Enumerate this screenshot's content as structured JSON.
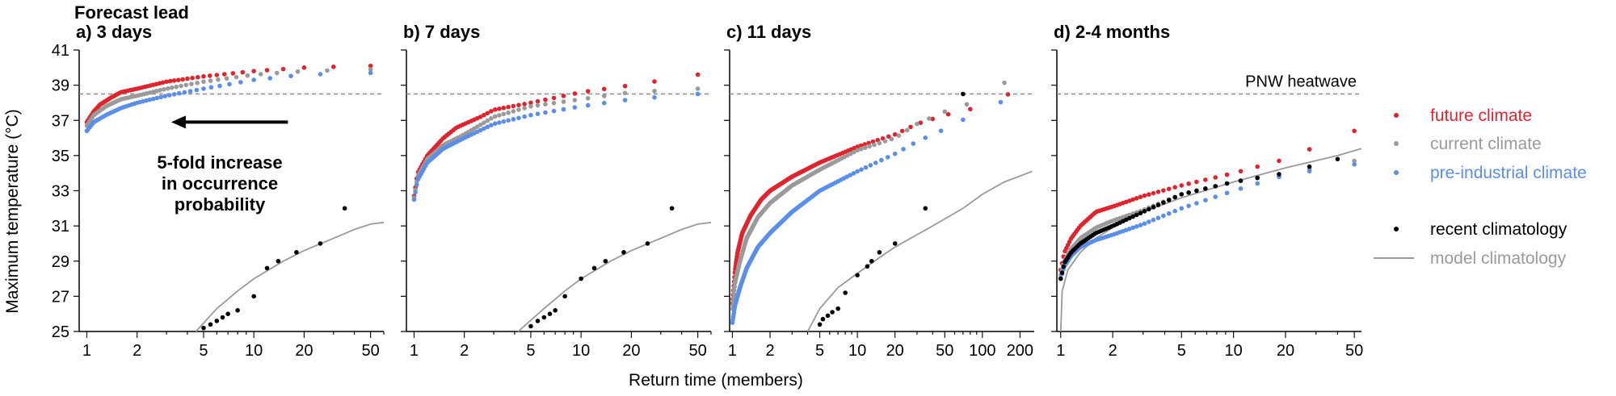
{
  "figure": {
    "suptitle": "Forecast lead",
    "ylabel": "Maximum temperature (°C)",
    "xlabel": "Return time (members)"
  },
  "colors": {
    "future": "#e0242e",
    "current": "#9a9a9a",
    "preindustrial": "#5a8ee8",
    "recent": "#000000",
    "model": "#9a9a9a",
    "heatwave_line": "#8a8a8a"
  },
  "legend": {
    "future": "future climate",
    "current": "current climate",
    "preindustrial": "pre-industrial climate",
    "recent": "recent climatology",
    "model": "model climatology"
  },
  "reference_line": {
    "label": "PNW heatwave",
    "value": 38.5
  },
  "annotation": {
    "lines": [
      "5-fold increase",
      "in occurrence",
      "probability"
    ],
    "arrow_from_x": 16,
    "arrow_to_x": 3.2,
    "arrow_y": 36.9
  },
  "chart_data": [
    {
      "type": "scatter",
      "panel": "a",
      "title": "a) 3 days",
      "xscale": "log",
      "xlim": [
        0.9,
        60
      ],
      "ylim": [
        25,
        41
      ],
      "xticks": [
        1,
        2,
        5,
        10,
        20,
        50
      ],
      "yticks": [
        25,
        27,
        29,
        31,
        33,
        35,
        37,
        39,
        41
      ],
      "series": {
        "future": {
          "n": 60,
          "xmax": 50,
          "pts": [
            [
              1,
              36.9
            ],
            [
              1.1,
              37.5
            ],
            [
              1.2,
              37.9
            ],
            [
              1.4,
              38.3
            ],
            [
              1.6,
              38.6
            ],
            [
              2,
              38.8
            ],
            [
              3,
              39.2
            ],
            [
              5,
              39.5
            ],
            [
              10,
              39.8
            ],
            [
              20,
              40.0
            ],
            [
              50,
              40.1
            ]
          ]
        },
        "current": {
          "n": 55,
          "xmax": 50,
          "pts": [
            [
              1,
              36.7
            ],
            [
              1.1,
              37.3
            ],
            [
              1.3,
              37.8
            ],
            [
              1.6,
              38.2
            ],
            [
              2,
              38.4
            ],
            [
              3,
              38.8
            ],
            [
              5,
              39.2
            ],
            [
              10,
              39.6
            ],
            [
              20,
              39.8
            ],
            [
              50,
              39.9
            ]
          ]
        },
        "preindustrial": {
          "n": 50,
          "xmax": 50,
          "pts": [
            [
              1,
              36.4
            ],
            [
              1.1,
              36.9
            ],
            [
              1.3,
              37.3
            ],
            [
              1.6,
              37.7
            ],
            [
              2,
              38.0
            ],
            [
              3,
              38.4
            ],
            [
              5,
              38.8
            ],
            [
              10,
              39.3
            ],
            [
              20,
              39.6
            ],
            [
              50,
              39.7
            ]
          ]
        },
        "recent": [
          [
            35,
            32.0
          ],
          [
            25,
            30.0
          ],
          [
            18,
            29.5
          ],
          [
            14,
            29.0
          ],
          [
            12,
            28.6
          ],
          [
            10,
            27.0
          ],
          [
            8,
            26.2
          ],
          [
            7,
            26.0
          ],
          [
            6.5,
            25.8
          ],
          [
            6,
            25.6
          ],
          [
            5.5,
            25.4
          ],
          [
            5,
            25.2
          ]
        ],
        "model": [
          [
            4.5,
            25
          ],
          [
            6,
            26.3
          ],
          [
            8,
            27.3
          ],
          [
            10,
            28.0
          ],
          [
            15,
            29.0
          ],
          [
            20,
            29.6
          ],
          [
            30,
            30.3
          ],
          [
            40,
            30.8
          ],
          [
            50,
            31.1
          ],
          [
            60,
            31.2
          ]
        ]
      }
    },
    {
      "type": "scatter",
      "panel": "b",
      "title": "b) 7 days",
      "xscale": "log",
      "xlim": [
        0.9,
        60
      ],
      "ylim": [
        25,
        41
      ],
      "xticks": [
        1,
        2,
        5,
        10,
        20,
        50
      ],
      "yticks": [
        25,
        27,
        29,
        31,
        33,
        35,
        37,
        39,
        41
      ],
      "series": {
        "future": {
          "n": 55,
          "xmax": 50,
          "pts": [
            [
              1,
              32.7
            ],
            [
              1.05,
              34.0
            ],
            [
              1.2,
              35.0
            ],
            [
              1.5,
              36.0
            ],
            [
              1.8,
              36.6
            ],
            [
              2.5,
              37.2
            ],
            [
              3,
              37.6
            ],
            [
              5,
              38.0
            ],
            [
              10,
              38.6
            ],
            [
              20,
              39.0
            ],
            [
              50,
              39.6
            ]
          ]
        },
        "current": {
          "n": 55,
          "xmax": 50,
          "pts": [
            [
              1,
              32.6
            ],
            [
              1.05,
              33.8
            ],
            [
              1.2,
              34.8
            ],
            [
              1.5,
              35.6
            ],
            [
              2,
              36.2
            ],
            [
              3,
              37.2
            ],
            [
              5,
              37.8
            ],
            [
              10,
              38.2
            ],
            [
              20,
              38.6
            ],
            [
              50,
              38.8
            ]
          ]
        },
        "preindustrial": {
          "n": 55,
          "xmax": 50,
          "pts": [
            [
              1,
              32.5
            ],
            [
              1.05,
              33.6
            ],
            [
              1.2,
              34.6
            ],
            [
              1.5,
              35.4
            ],
            [
              2,
              36.0
            ],
            [
              3,
              36.8
            ],
            [
              5,
              37.3
            ],
            [
              10,
              37.8
            ],
            [
              20,
              38.2
            ],
            [
              50,
              38.5
            ]
          ]
        },
        "recent": [
          [
            35,
            32.0
          ],
          [
            25,
            30.0
          ],
          [
            18,
            29.5
          ],
          [
            14,
            29.0
          ],
          [
            12,
            28.6
          ],
          [
            10,
            28.0
          ],
          [
            8,
            27.0
          ],
          [
            7,
            26.2
          ],
          [
            6.5,
            26.0
          ],
          [
            6,
            25.8
          ],
          [
            5.5,
            25.6
          ],
          [
            5,
            25.3
          ]
        ],
        "model": [
          [
            4.2,
            25
          ],
          [
            6,
            26.3
          ],
          [
            8,
            27.3
          ],
          [
            10,
            28.0
          ],
          [
            15,
            29.0
          ],
          [
            20,
            29.6
          ],
          [
            30,
            30.3
          ],
          [
            40,
            30.8
          ],
          [
            50,
            31.1
          ],
          [
            60,
            31.2
          ]
        ]
      }
    },
    {
      "type": "scatter",
      "panel": "c",
      "title": "c) 11 days",
      "xscale": "log",
      "xlim": [
        0.95,
        260
      ],
      "ylim": [
        25,
        41
      ],
      "xticks": [
        1,
        2,
        5,
        10,
        20,
        50,
        100,
        200
      ],
      "yticks": [
        25,
        27,
        29,
        31,
        33,
        35,
        37,
        39,
        41
      ],
      "series": {
        "future": {
          "n": 160,
          "xmax": 200,
          "pts": [
            [
              1,
              26.6
            ],
            [
              1.05,
              28.5
            ],
            [
              1.1,
              29.5
            ],
            [
              1.2,
              30.6
            ],
            [
              1.4,
              31.6
            ],
            [
              1.7,
              32.5
            ],
            [
              2,
              33.0
            ],
            [
              3,
              33.8
            ],
            [
              5,
              34.6
            ],
            [
              10,
              35.5
            ],
            [
              20,
              36.2
            ],
            [
              30,
              36.8
            ],
            [
              50,
              37.3
            ],
            [
              100,
              37.8
            ],
            [
              200,
              38.8
            ]
          ]
        },
        "current": {
          "n": 150,
          "xmax": 200,
          "pts": [
            [
              1,
              26.3
            ],
            [
              1.05,
              27.8
            ],
            [
              1.15,
              29.0
            ],
            [
              1.3,
              30.3
            ],
            [
              1.6,
              31.5
            ],
            [
              2,
              32.3
            ],
            [
              3,
              33.3
            ],
            [
              5,
              34.2
            ],
            [
              10,
              35.3
            ],
            [
              20,
              36.0
            ],
            [
              30,
              36.8
            ],
            [
              50,
              37.5
            ],
            [
              100,
              38.2
            ],
            [
              200,
              39.8
            ]
          ]
        },
        "preindustrial": {
          "n": 140,
          "xmax": 200,
          "pts": [
            [
              1,
              25.5
            ],
            [
              1.05,
              26.5
            ],
            [
              1.15,
              27.5
            ],
            [
              1.3,
              28.6
            ],
            [
              1.6,
              29.8
            ],
            [
              2,
              30.6
            ],
            [
              3,
              31.8
            ],
            [
              5,
              33.0
            ],
            [
              10,
              34.1
            ],
            [
              20,
              35.1
            ],
            [
              30,
              35.8
            ],
            [
              50,
              36.5
            ],
            [
              100,
              37.6
            ],
            [
              200,
              38.5
            ]
          ]
        },
        "recent": [
          [
            70,
            38.5
          ],
          [
            35,
            32.0
          ],
          [
            20,
            30.0
          ],
          [
            15,
            29.5
          ],
          [
            13,
            29.0
          ],
          [
            12,
            28.7
          ],
          [
            10,
            28.2
          ],
          [
            8,
            27.2
          ],
          [
            7,
            26.3
          ],
          [
            6.3,
            26.1
          ],
          [
            5.8,
            25.9
          ],
          [
            5.3,
            25.7
          ],
          [
            5,
            25.4
          ]
        ],
        "model": [
          [
            4,
            25
          ],
          [
            5,
            26.3
          ],
          [
            7,
            27.5
          ],
          [
            10,
            28.3
          ],
          [
            15,
            29.2
          ],
          [
            20,
            29.8
          ],
          [
            40,
            31.0
          ],
          [
            70,
            32.0
          ],
          [
            100,
            32.8
          ],
          [
            150,
            33.5
          ],
          [
            250,
            34.1
          ]
        ]
      }
    },
    {
      "type": "scatter",
      "panel": "d",
      "title": "d) 2-4 months",
      "xscale": "log",
      "xlim": [
        0.95,
        55
      ],
      "ylim": [
        25,
        41
      ],
      "xticks": [
        1,
        2,
        5,
        10,
        20,
        50
      ],
      "yticks": [
        25,
        27,
        29,
        31,
        33,
        35,
        37,
        39,
        41
      ],
      "series": {
        "future": {
          "n": 55,
          "xmax": 50,
          "pts": [
            [
              1,
              28.5
            ],
            [
              1.05,
              29.5
            ],
            [
              1.15,
              30.3
            ],
            [
              1.3,
              31.0
            ],
            [
              1.6,
              31.8
            ],
            [
              2,
              32.1
            ],
            [
              3,
              32.7
            ],
            [
              5,
              33.3
            ],
            [
              10,
              34.0
            ],
            [
              20,
              34.8
            ],
            [
              50,
              36.4
            ]
          ]
        },
        "current": {
          "n": 55,
          "xmax": 50,
          "pts": [
            [
              1,
              28.2
            ],
            [
              1.05,
              29.0
            ],
            [
              1.15,
              29.7
            ],
            [
              1.3,
              30.3
            ],
            [
              1.6,
              30.9
            ],
            [
              2,
              31.3
            ],
            [
              3,
              31.9
            ],
            [
              5,
              32.8
            ],
            [
              10,
              33.5
            ],
            [
              20,
              34.0
            ],
            [
              50,
              34.7
            ]
          ]
        },
        "preindustrial": {
          "n": 55,
          "xmax": 50,
          "pts": [
            [
              1,
              28.0
            ],
            [
              1.05,
              28.7
            ],
            [
              1.15,
              29.3
            ],
            [
              1.3,
              29.8
            ],
            [
              1.6,
              30.2
            ],
            [
              2,
              30.5
            ],
            [
              3,
              31.1
            ],
            [
              5,
              32.0
            ],
            [
              10,
              33.0
            ],
            [
              20,
              33.9
            ],
            [
              50,
              34.5
            ]
          ]
        },
        "recent": {
          "n": 55,
          "xmax": 40,
          "pts": [
            [
              1,
              28.0
            ],
            [
              1.05,
              28.9
            ],
            [
              1.15,
              29.5
            ],
            [
              1.3,
              30.0
            ],
            [
              1.6,
              30.6
            ],
            [
              2,
              31.0
            ],
            [
              3,
              31.8
            ],
            [
              5,
              32.8
            ],
            [
              10,
              33.5
            ],
            [
              20,
              34.0
            ],
            [
              40,
              34.8
            ]
          ]
        },
        "model": [
          [
            1,
            25
          ],
          [
            1.02,
            27.3
          ],
          [
            1.1,
            28.5
          ],
          [
            1.3,
            29.5
          ],
          [
            1.6,
            30.3
          ],
          [
            2,
            30.9
          ],
          [
            3,
            31.8
          ],
          [
            5,
            32.6
          ],
          [
            10,
            33.5
          ],
          [
            20,
            34.3
          ],
          [
            40,
            35.0
          ],
          [
            55,
            35.4
          ]
        ]
      }
    }
  ]
}
